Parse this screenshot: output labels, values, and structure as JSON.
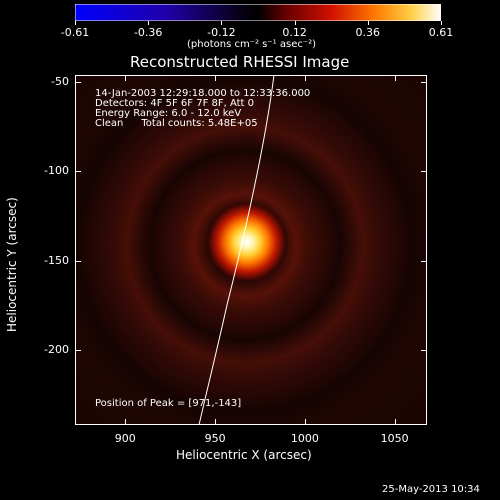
{
  "colorbar": {
    "ticks": [
      "-0.61",
      "-0.36",
      "-0.12",
      "0.12",
      "0.36",
      "0.61"
    ],
    "units_label": "(photons cm⁻² s⁻¹ asec⁻²)",
    "range": [
      -0.61,
      0.61
    ]
  },
  "plot": {
    "title": "Reconstructed RHESSI Image",
    "xlabel": "Heliocentric X (arcsec)",
    "ylabel": "Heliocentric Y (arcsec)",
    "xticks": [
      "900",
      "950",
      "1000",
      "1050"
    ],
    "yticks": [
      "-50",
      "-100",
      "-150",
      "-200"
    ],
    "xlim": [
      872,
      1068
    ],
    "ylim": [
      -242,
      -46
    ],
    "peak_position": [
      971,
      -143
    ]
  },
  "info": {
    "time_range": "14-Jan-2003 12:29:18.000 to 12:33:36.000",
    "detectors": "Detectors: 4F 5F 6F 7F 8F, Att 0",
    "energy_range": "Energy Range: 6.0 - 12.0 keV",
    "clean_label": "Clean",
    "total_counts": "Total counts: 5.48E+05",
    "peak_label": "Position of Peak = [971,-143]"
  },
  "footer": {
    "timestamp": "25-May-2013 10:34"
  },
  "colors": {
    "background": "#000000",
    "axes": "#ffffff",
    "colormap": [
      "#0000ff",
      "#1a00b0",
      "#000000",
      "#b40000",
      "#ff5a00",
      "#ffd050",
      "#ffffff"
    ]
  }
}
